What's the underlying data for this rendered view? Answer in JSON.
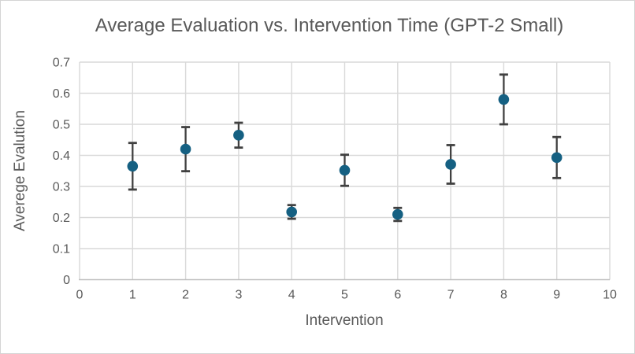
{
  "chart_data": {
    "type": "scatter",
    "title": "Average Evaluation vs. Intervention Time (GPT-2 Small)",
    "xlabel": "Intervention",
    "ylabel": "Averege Evalution",
    "xlim": [
      0,
      10
    ],
    "ylim": [
      0,
      0.7
    ],
    "x_ticks": [
      "0",
      "1",
      "2",
      "3",
      "4",
      "5",
      "6",
      "7",
      "8",
      "9",
      "10"
    ],
    "y_ticks": [
      "0",
      "0.1",
      "0.2",
      "0.3",
      "0.4",
      "0.5",
      "0.6",
      "0.7"
    ],
    "grid": true,
    "legend": false,
    "series": [
      {
        "x": [
          1,
          2,
          3,
          4,
          5,
          6,
          7,
          8,
          9
        ],
        "y": [
          0.365,
          0.42,
          0.465,
          0.218,
          0.352,
          0.21,
          0.371,
          0.58,
          0.393
        ],
        "yerr": [
          0.075,
          0.071,
          0.04,
          0.022,
          0.05,
          0.021,
          0.062,
          0.08,
          0.066
        ]
      }
    ],
    "colors": {
      "marker": "#156082",
      "error_bar": "#404040",
      "gridline": "#d9d9d9",
      "axis_line": "#bfbfbf",
      "text": "#595959",
      "background": "#ffffff",
      "border": "#d4d4d4"
    }
  }
}
